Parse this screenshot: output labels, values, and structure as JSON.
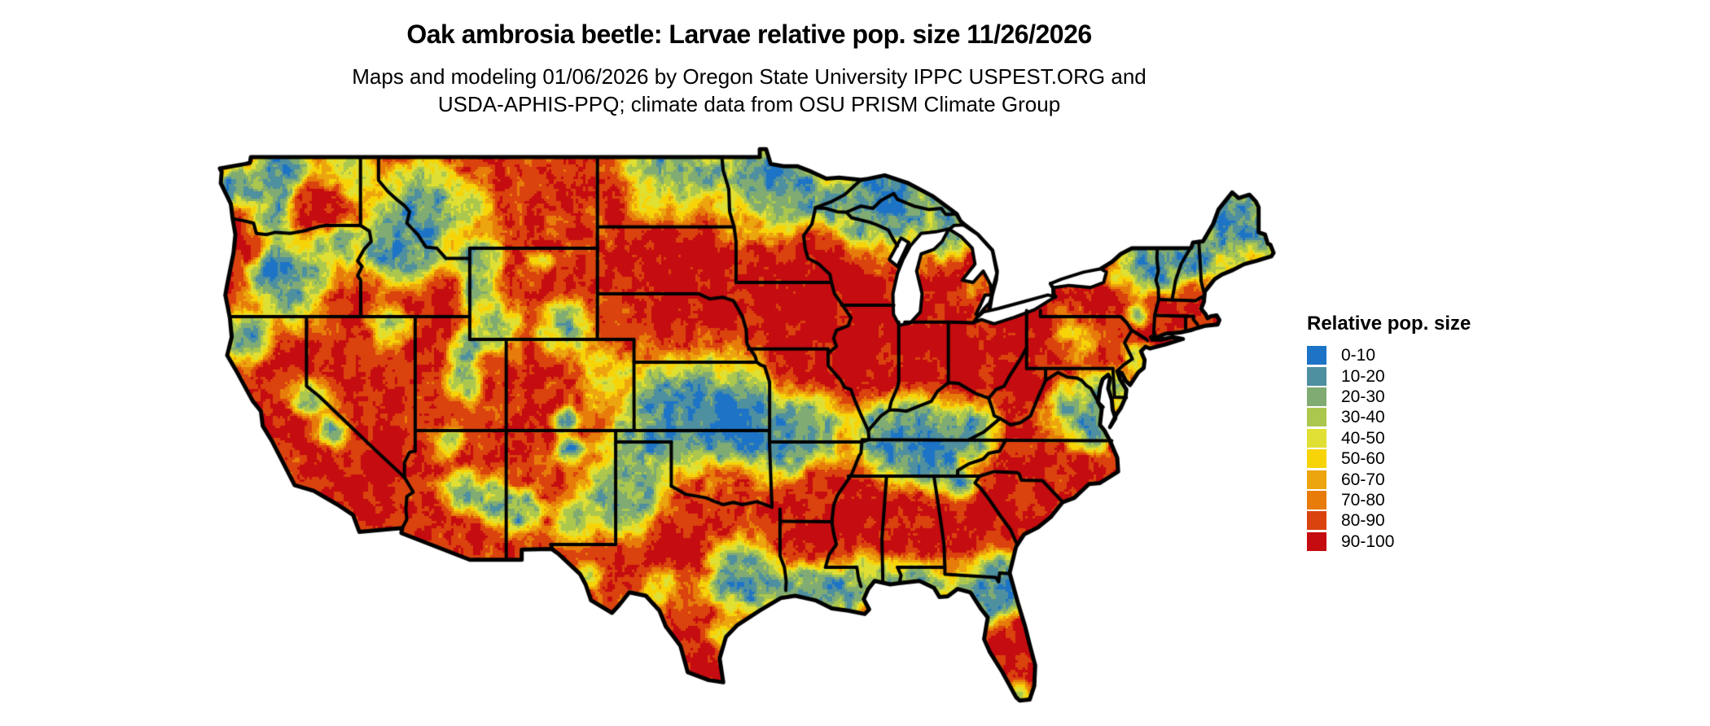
{
  "page": {
    "background_color": "#ffffff"
  },
  "header": {
    "title": "Oak ambrosia beetle: Larvae relative pop. size 11/26/2026",
    "subtitle_line1": "Maps and modeling 01/06/2026 by Oregon State University IPPC USPEST.ORG and",
    "subtitle_line2": "USDA-APHIS-PPQ; climate data from OSU PRISM Climate Group"
  },
  "legend": {
    "title": "Relative pop. size",
    "classes": [
      {
        "label": "0-10",
        "color": "#1d74c6"
      },
      {
        "label": "10-20",
        "color": "#4e8fa0"
      },
      {
        "label": "20-30",
        "color": "#80ab73"
      },
      {
        "label": "30-40",
        "color": "#abc74e"
      },
      {
        "label": "40-50",
        "color": "#e0df33"
      },
      {
        "label": "50-60",
        "color": "#f7d408"
      },
      {
        "label": "60-70",
        "color": "#eca50f"
      },
      {
        "label": "70-80",
        "color": "#e77c0a"
      },
      {
        "label": "80-90",
        "color": "#da420e"
      },
      {
        "label": "90-100",
        "color": "#c50c10"
      }
    ]
  },
  "chart_data": {
    "type": "heatmap",
    "title": "Oak ambrosia beetle: Larvae relative pop. size 11/26/2026",
    "subtitle": "Maps and modeling 01/06/2026 by Oregon State University IPPC USPEST.ORG and USDA-APHIS-PPQ; climate data from OSU PRISM Climate Group",
    "region": "Contiguous United States with state boundaries",
    "legend_title": "Relative pop. size",
    "legend_position": "right",
    "bins": [
      "0-10",
      "10-20",
      "20-30",
      "30-40",
      "40-50",
      "50-60",
      "60-70",
      "70-80",
      "80-90",
      "90-100"
    ],
    "palette": [
      "#1d74c6",
      "#4e8fa0",
      "#80ab73",
      "#abc74e",
      "#e0df33",
      "#f7d408",
      "#eca50f",
      "#e77c0a",
      "#da420e",
      "#c50c10"
    ],
    "map_bounds": {
      "lon_min": -124.75,
      "lon_max": -66.95,
      "lat_min": 24.5,
      "lat_max": 49.4
    },
    "pattern_summary": [
      "90-100 (red) dominates: central/southern plains states (SD, NE, IA, IL, IN, OH), interior Southeast (MS, AL, GA, SC, piedmont NC), central Texas, Nevada/Mojave deserts, California valleys, Pennsylvania/New York, central Florida",
      "0-10 (blue) in: Cascades/Sierra/Rockies highlands, western Montana, central Idaho, a large Kansas-Oklahoma-Ozarks lowland blob, Llano Estacado, Kentucky-Tennessee band, Gulf coastal strip, north Florida, northern Minnesota/North Dakota, Great Lakes shores, Adirondacks and northern New England",
      "Yellow/orange transition fringes between blue and red zones; eastern Montana orange-red blob with yellow rim; Maine coast yellow-orange"
    ]
  },
  "map_model": {
    "base_value": 88,
    "base_weight": 0.16,
    "noise": {
      "scale1": 0.55,
      "amp1": 18,
      "scale2": 0.18,
      "amp2": 9
    },
    "anchors": [
      [
        -123.8,
        47.7,
        0.8,
        4,
        1
      ],
      [
        -121.6,
        47.9,
        1.0,
        4,
        1
      ],
      [
        -120.9,
        48.8,
        0.8,
        5,
        1
      ],
      [
        -121.7,
        46.5,
        0.8,
        6,
        1
      ],
      [
        -119.4,
        46.9,
        1.1,
        97,
        1.5
      ],
      [
        -117.8,
        48.4,
        1.0,
        30,
        1
      ],
      [
        -118.4,
        45.2,
        0.8,
        12,
        1
      ],
      [
        -123.1,
        44.9,
        0.5,
        92,
        1.2
      ],
      [
        -124.05,
        43.8,
        0.5,
        88,
        1
      ],
      [
        -121.9,
        44.0,
        0.9,
        5,
        1
      ],
      [
        -120.3,
        43.6,
        1.6,
        14,
        1
      ],
      [
        -118.0,
        42.7,
        1.3,
        92,
        1
      ],
      [
        -116.4,
        43.6,
        0.7,
        95,
        1
      ],
      [
        -114.8,
        42.9,
        0.9,
        96,
        1
      ],
      [
        -112.6,
        43.0,
        1.0,
        94,
        1
      ],
      [
        -114.9,
        44.9,
        1.6,
        4,
        1.2
      ],
      [
        -113.6,
        46.8,
        1.6,
        6,
        1
      ],
      [
        -110.9,
        46.8,
        1.0,
        45,
        1
      ],
      [
        -106.3,
        46.9,
        2.2,
        87,
        1.4
      ],
      [
        -110.5,
        44.4,
        0.9,
        6,
        1
      ],
      [
        -110.75,
        43.1,
        0.7,
        10,
        1
      ],
      [
        -108.0,
        43.7,
        1.4,
        90,
        1
      ],
      [
        -107.2,
        44.4,
        0.5,
        25,
        1
      ],
      [
        -105.9,
        41.5,
        1.0,
        18,
        1
      ],
      [
        -109.8,
        41.8,
        1.1,
        28,
        1
      ],
      [
        -111.3,
        40.55,
        0.6,
        8,
        1
      ],
      [
        -111.5,
        39.1,
        0.7,
        18,
        1
      ],
      [
        -113.3,
        40.7,
        0.9,
        93,
        1
      ],
      [
        -113.0,
        38.2,
        1.0,
        90,
        1
      ],
      [
        -115.4,
        41.5,
        0.8,
        30,
        1
      ],
      [
        -117.6,
        39.6,
        2.0,
        92,
        1.3
      ],
      [
        -119.7,
        38.35,
        0.8,
        4,
        1.2
      ],
      [
        -118.7,
        37.0,
        0.6,
        6,
        1
      ],
      [
        -123.3,
        41.2,
        0.9,
        14,
        1
      ],
      [
        -121.9,
        39.6,
        0.5,
        94,
        1
      ],
      [
        -120.6,
        37.2,
        0.8,
        96,
        1.2
      ],
      [
        -119.2,
        35.6,
        0.7,
        95,
        1
      ],
      [
        -116.6,
        34.6,
        1.8,
        94,
        1.2
      ],
      [
        -112.2,
        36.5,
        0.5,
        22,
        1
      ],
      [
        -111.4,
        34.3,
        0.7,
        18,
        1
      ],
      [
        -109.7,
        33.9,
        0.7,
        15,
        1
      ],
      [
        -108.3,
        33.5,
        0.8,
        12,
        1
      ],
      [
        -105.5,
        36.1,
        0.5,
        12,
        1
      ],
      [
        -105.8,
        37.5,
        0.5,
        10,
        1
      ],
      [
        -106.2,
        39.2,
        1.1,
        92,
        1.2
      ],
      [
        -107.6,
        37.8,
        0.9,
        92,
        1
      ],
      [
        -103.7,
        39.3,
        1.2,
        45,
        1
      ],
      [
        -102.6,
        33.9,
        1.5,
        7,
        1.2
      ],
      [
        -102.5,
        36.3,
        0.9,
        25,
        1
      ],
      [
        -100.9,
        36.6,
        1.0,
        8,
        1
      ],
      [
        -97.8,
        37.7,
        2.4,
        4,
        2.2
      ],
      [
        -100.4,
        37.6,
        1.6,
        8,
        1
      ],
      [
        -98.2,
        39.85,
        1.2,
        40,
        1
      ],
      [
        -94.9,
        37.3,
        1.3,
        5,
        1
      ],
      [
        -92.9,
        37.1,
        1.4,
        5,
        1.4
      ],
      [
        -93.6,
        35.8,
        0.9,
        15,
        1
      ],
      [
        -92.4,
        34.7,
        1.0,
        88,
        1
      ],
      [
        -97.4,
        34.6,
        1.5,
        92,
        1
      ],
      [
        -98.5,
        34.2,
        1.0,
        85,
        1
      ],
      [
        -99.3,
        31.4,
        1.9,
        96,
        1.3
      ],
      [
        -102.7,
        31.2,
        1.3,
        92,
        1
      ],
      [
        -104.3,
        30.6,
        0.5,
        28,
        1
      ],
      [
        -105.4,
        33.0,
        0.7,
        25,
        1
      ],
      [
        -100.4,
        30.2,
        0.8,
        30,
        1
      ],
      [
        -96.8,
        30.8,
        1.3,
        6,
        1.2
      ],
      [
        -95.3,
        30.3,
        1.2,
        7,
        1
      ],
      [
        -98.3,
        26.7,
        1.1,
        94,
        1.2
      ],
      [
        -97.0,
        28.2,
        0.7,
        45,
        1
      ],
      [
        -92.6,
        30.0,
        1.0,
        5,
        1
      ],
      [
        -90.8,
        29.8,
        0.9,
        5,
        1
      ],
      [
        -92.8,
        32.4,
        1.3,
        93,
        1
      ],
      [
        -89.3,
        30.8,
        0.8,
        22,
        1
      ],
      [
        -87.9,
        30.6,
        0.7,
        18,
        1
      ],
      [
        -86.4,
        30.5,
        0.9,
        10,
        1
      ],
      [
        -82.9,
        29.7,
        1.4,
        4,
        1.5
      ],
      [
        -81.9,
        30.4,
        0.9,
        8,
        1
      ],
      [
        -81.7,
        28.1,
        1.0,
        93,
        1.2
      ],
      [
        -81.5,
        26.6,
        0.9,
        93,
        1
      ],
      [
        -80.9,
        25.5,
        0.5,
        40,
        1
      ],
      [
        -82.4,
        30.9,
        0.7,
        18,
        1
      ],
      [
        -90.0,
        33.3,
        1.6,
        94,
        1.2
      ],
      [
        -87.0,
        32.7,
        1.5,
        95,
        1.2
      ],
      [
        -83.8,
        32.6,
        1.6,
        95,
        1.2
      ],
      [
        -81.2,
        33.9,
        1.4,
        94,
        1
      ],
      [
        -84.3,
        34.8,
        0.7,
        10,
        1
      ],
      [
        -85.6,
        35.2,
        0.7,
        12,
        1
      ],
      [
        -86.9,
        36.7,
        1.7,
        4,
        1.8
      ],
      [
        -84.9,
        36.5,
        1.4,
        4,
        1.6
      ],
      [
        -88.5,
        37.4,
        0.9,
        15,
        1
      ],
      [
        -86.6,
        38.2,
        0.7,
        25,
        1
      ],
      [
        -83.4,
        37.3,
        0.9,
        18,
        1
      ],
      [
        -83.9,
        35.4,
        0.5,
        80,
        1
      ],
      [
        -80.6,
        38.4,
        1.3,
        95,
        1.2
      ],
      [
        -79.3,
        37.4,
        0.6,
        88,
        1
      ],
      [
        -78.2,
        37.7,
        1.1,
        8,
        1
      ],
      [
        -77.2,
        36.8,
        0.8,
        15,
        1
      ],
      [
        -76.4,
        38.8,
        0.7,
        12,
        1
      ],
      [
        -75.3,
        38.6,
        0.6,
        25,
        1
      ],
      [
        -78.2,
        35.3,
        1.3,
        92,
        1
      ],
      [
        -77.6,
        41.4,
        1.0,
        65,
        1
      ],
      [
        -74.25,
        44.05,
        0.9,
        4,
        1.2
      ],
      [
        -75.7,
        43.55,
        0.35,
        20,
        1
      ],
      [
        -74.5,
        42.05,
        0.4,
        22,
        1
      ],
      [
        -73.3,
        44.6,
        0.3,
        3,
        1
      ],
      [
        -72.9,
        44.1,
        0.9,
        7,
        1
      ],
      [
        -71.4,
        44.5,
        0.8,
        4,
        1
      ],
      [
        -69.3,
        46.2,
        1.5,
        4,
        1.3
      ],
      [
        -69.9,
        44.1,
        0.5,
        55,
        1
      ],
      [
        -68.7,
        44.5,
        0.5,
        50,
        1
      ],
      [
        -67.6,
        44.9,
        0.5,
        35,
        1
      ],
      [
        -70.6,
        43.4,
        0.4,
        75,
        1
      ],
      [
        -72.2,
        42.0,
        1.2,
        93,
        1
      ],
      [
        -74.4,
        40.2,
        0.5,
        30,
        1
      ],
      [
        -84.6,
        42.9,
        1.3,
        94,
        1
      ],
      [
        -83.4,
        43.2,
        0.6,
        75,
        1
      ],
      [
        -85.0,
        45.2,
        0.7,
        30,
        1
      ],
      [
        -85.5,
        46.4,
        1.2,
        14,
        1
      ],
      [
        -89.5,
        46.3,
        1.2,
        7,
        1
      ],
      [
        -88.0,
        47.5,
        1.6,
        3,
        1.6
      ],
      [
        -91.0,
        46.9,
        0.8,
        4,
        1
      ],
      [
        -95.2,
        48.0,
        1.5,
        6,
        1
      ],
      [
        -93.2,
        47.6,
        1.6,
        5,
        1
      ],
      [
        -99.8,
        48.6,
        1.7,
        7,
        1.2
      ],
      [
        -100.2,
        47.5,
        1.2,
        50,
        1
      ],
      [
        -97.3,
        48.2,
        0.8,
        30,
        1
      ],
      [
        -96.2,
        46.5,
        1.1,
        55,
        1
      ],
      [
        -100.0,
        44.3,
        2.0,
        96,
        1.3
      ],
      [
        -98.0,
        41.5,
        2.0,
        97,
        1.3
      ],
      [
        -93.5,
        42.2,
        2.2,
        97,
        1.3
      ],
      [
        -89.8,
        40.6,
        2.2,
        97,
        1.3
      ],
      [
        -85.8,
        40.3,
        2.4,
        97,
        1.3
      ],
      [
        -82.0,
        40.6,
        1.8,
        96,
        1.2
      ],
      [
        -93.4,
        39.7,
        1.2,
        94,
        1
      ],
      [
        -91.5,
        44.5,
        1.5,
        95,
        1
      ],
      [
        -76.2,
        42.9,
        1.4,
        95,
        1
      ]
    ]
  }
}
